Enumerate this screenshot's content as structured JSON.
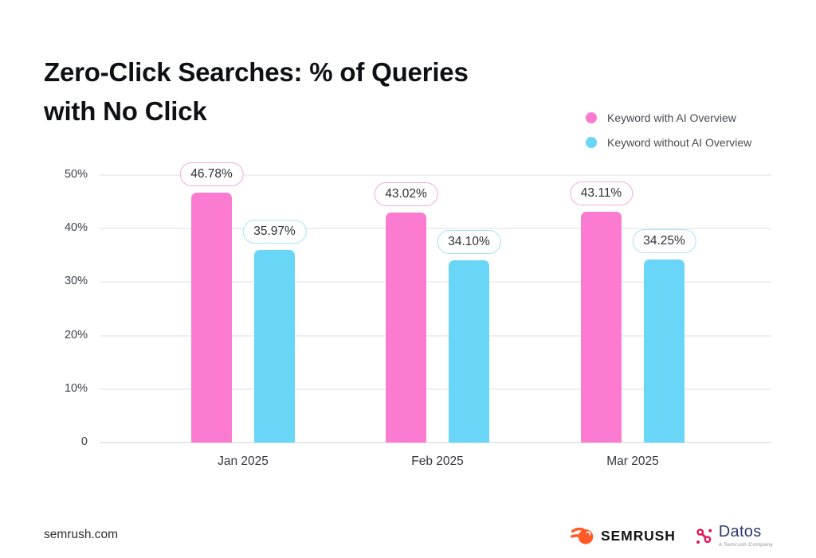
{
  "title": {
    "lines": [
      "Zero-Click Searches: % of Queries",
      "with No Click"
    ]
  },
  "legend": {
    "items": [
      {
        "label": "Keyword with AI Overview",
        "color": "#fb7bd0"
      },
      {
        "label": "Keyword without AI Overview",
        "color": "#69d6f8"
      }
    ]
  },
  "chart_data": {
    "type": "bar",
    "title": "Zero-Click Searches: % of Queries with No Click",
    "categories": [
      "Jan 2025",
      "Feb 2025",
      "Mar 2025"
    ],
    "series": [
      {
        "name": "Keyword with AI Overview",
        "color": "#fb7bd0",
        "badge_border": "#f5aadd",
        "values": [
          46.78,
          43.02,
          43.11
        ],
        "labels": [
          "46.78%",
          "43.02%",
          "43.11%"
        ]
      },
      {
        "name": "Keyword without AI Overview",
        "color": "#69d6f8",
        "badge_border": "#a9e2f5",
        "values": [
          35.97,
          34.1,
          34.25
        ],
        "labels": [
          "35.97%",
          "34.10%",
          "34.25%"
        ]
      }
    ],
    "xlabel": "",
    "ylabel": "",
    "ylim": [
      0,
      52
    ],
    "yticks": [
      {
        "value": 50,
        "label": "50%"
      },
      {
        "value": 40,
        "label": "40%"
      },
      {
        "value": 30,
        "label": "30%"
      },
      {
        "value": 20,
        "label": "20%"
      },
      {
        "value": 10,
        "label": "10%"
      },
      {
        "value": 0,
        "label": "0"
      }
    ],
    "grid": true,
    "legend_position": "top-right"
  },
  "footer": {
    "source": "semrush.com",
    "semrush": {
      "text": "SEMRUSH"
    },
    "datos": {
      "text": "Datos",
      "tagline": "A Semrush Company"
    }
  },
  "colors": {
    "bar_pink": "#fb7bd0",
    "bar_cyan": "#69d6f8",
    "grid": "#edeff2",
    "semrush_orange": "#ff5a28",
    "datos_crimson": "#e01a5f",
    "datos_navy": "#2c3b6d"
  }
}
